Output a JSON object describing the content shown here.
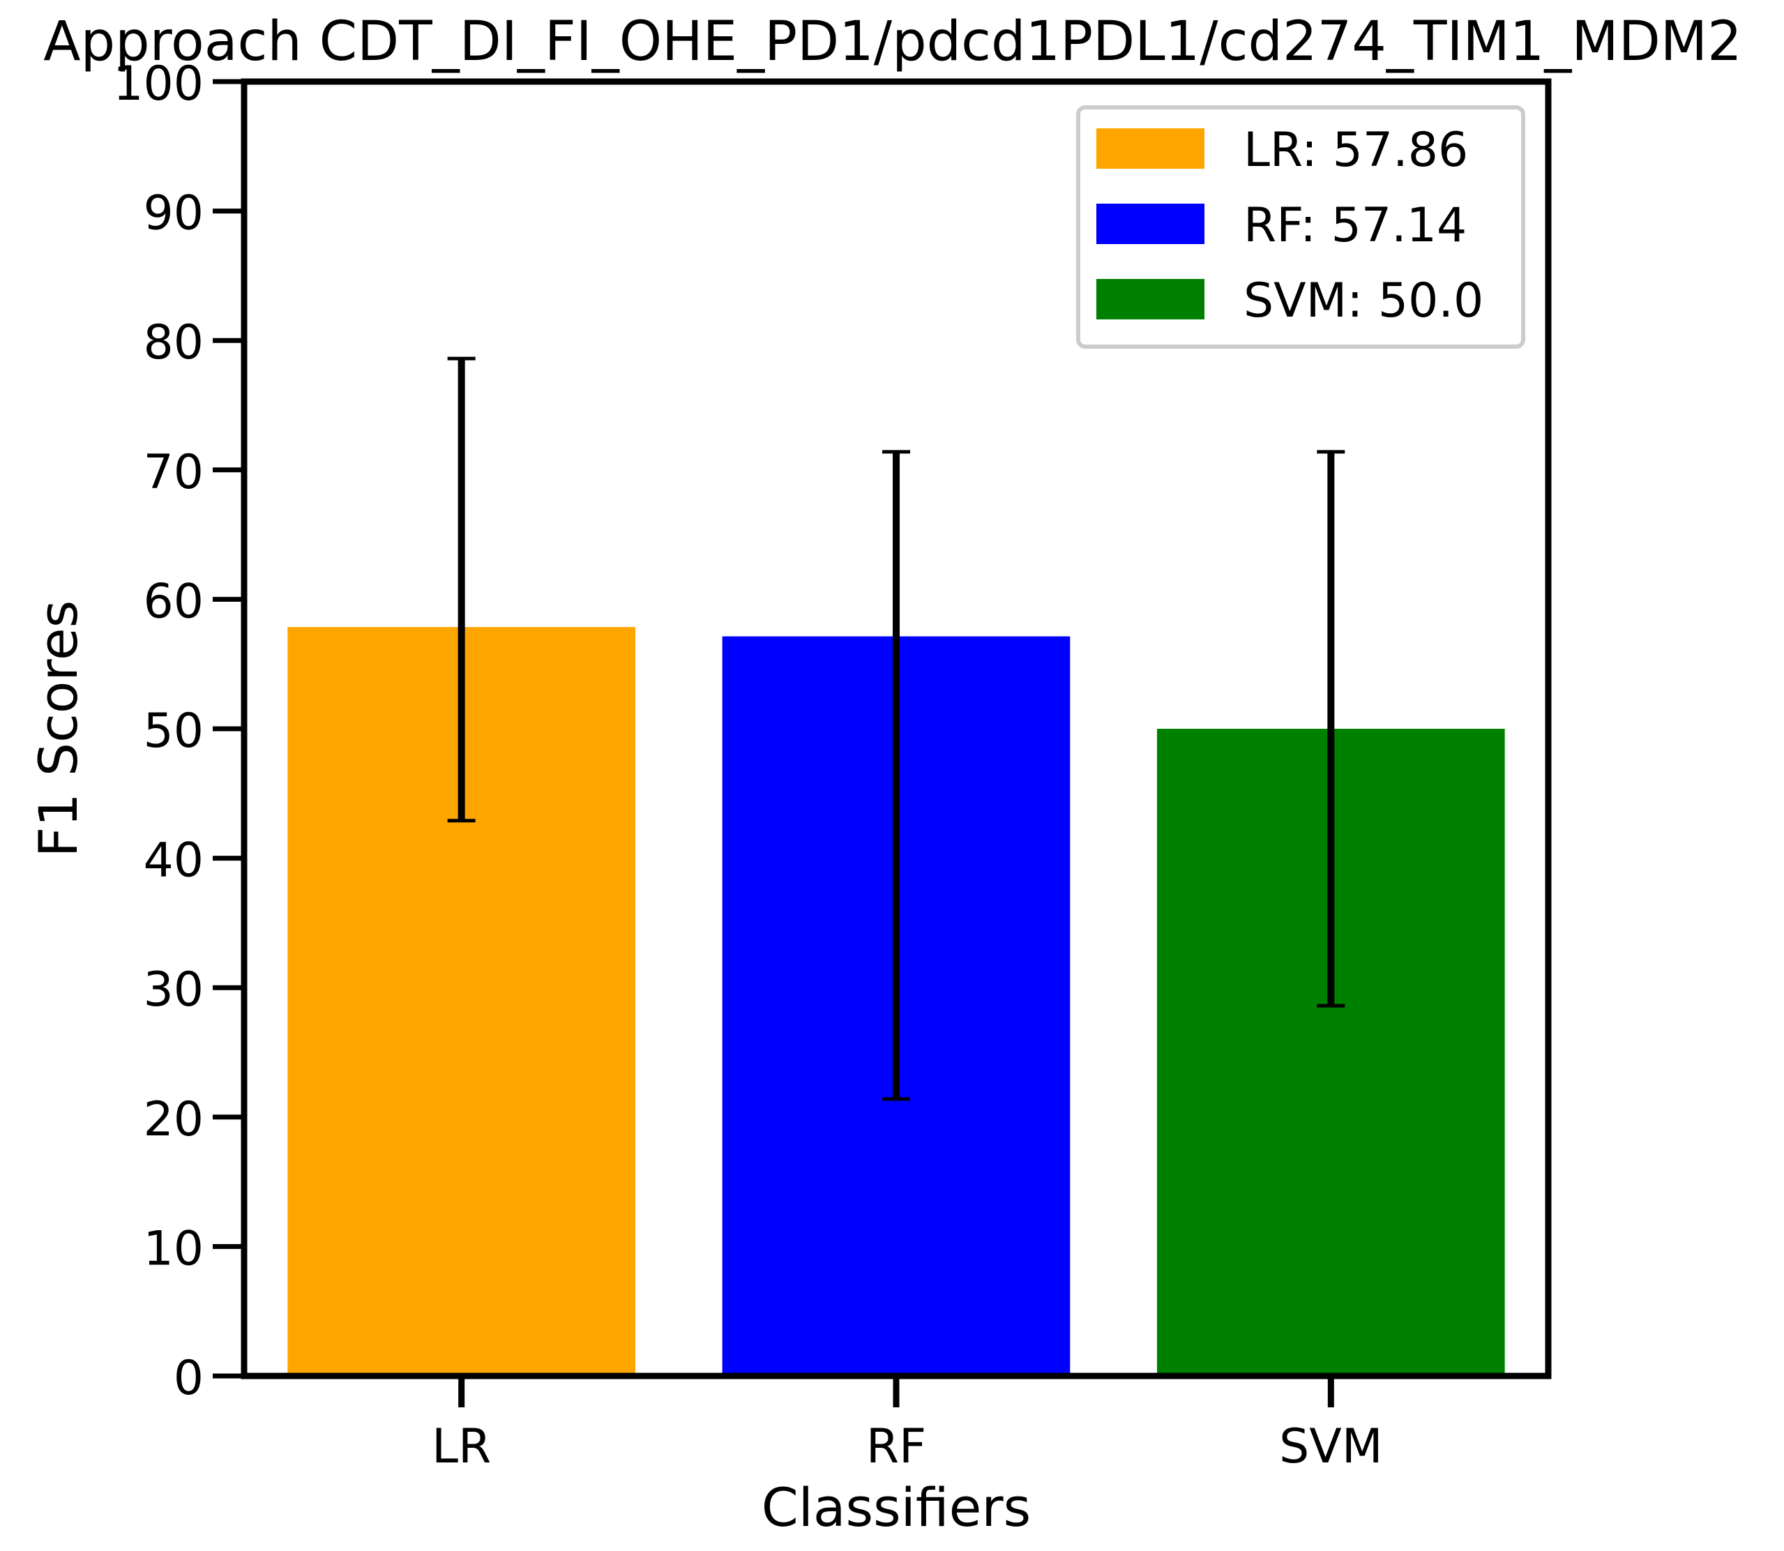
{
  "chart_data": {
    "type": "bar",
    "title": "Approach CDT_DI_FI_OHE_PD1/pdcd1PDL1/cd274_TIM1_MDM2",
    "xlabel": "Classifiers",
    "ylabel": "F1 Scores",
    "categories": [
      "LR",
      "RF",
      "SVM"
    ],
    "values": [
      57.86,
      57.14,
      50.0
    ],
    "error_low": [
      42.9,
      21.4,
      28.6
    ],
    "error_high": [
      78.6,
      71.4,
      71.4
    ],
    "colors": [
      "#ffa500",
      "#0000ff",
      "#008000"
    ],
    "ylim": [
      0,
      100
    ],
    "yticks": [
      0,
      10,
      20,
      30,
      40,
      50,
      60,
      70,
      80,
      90,
      100
    ],
    "ytick_labels": [
      "0",
      "10",
      "20",
      "30",
      "40",
      "50",
      "60",
      "70",
      "80",
      "90",
      "100"
    ],
    "grid": false,
    "legend": {
      "placement": "top-right",
      "entries": [
        "LR: 57.86",
        "RF: 57.14",
        "SVM: 50.0"
      ]
    }
  }
}
